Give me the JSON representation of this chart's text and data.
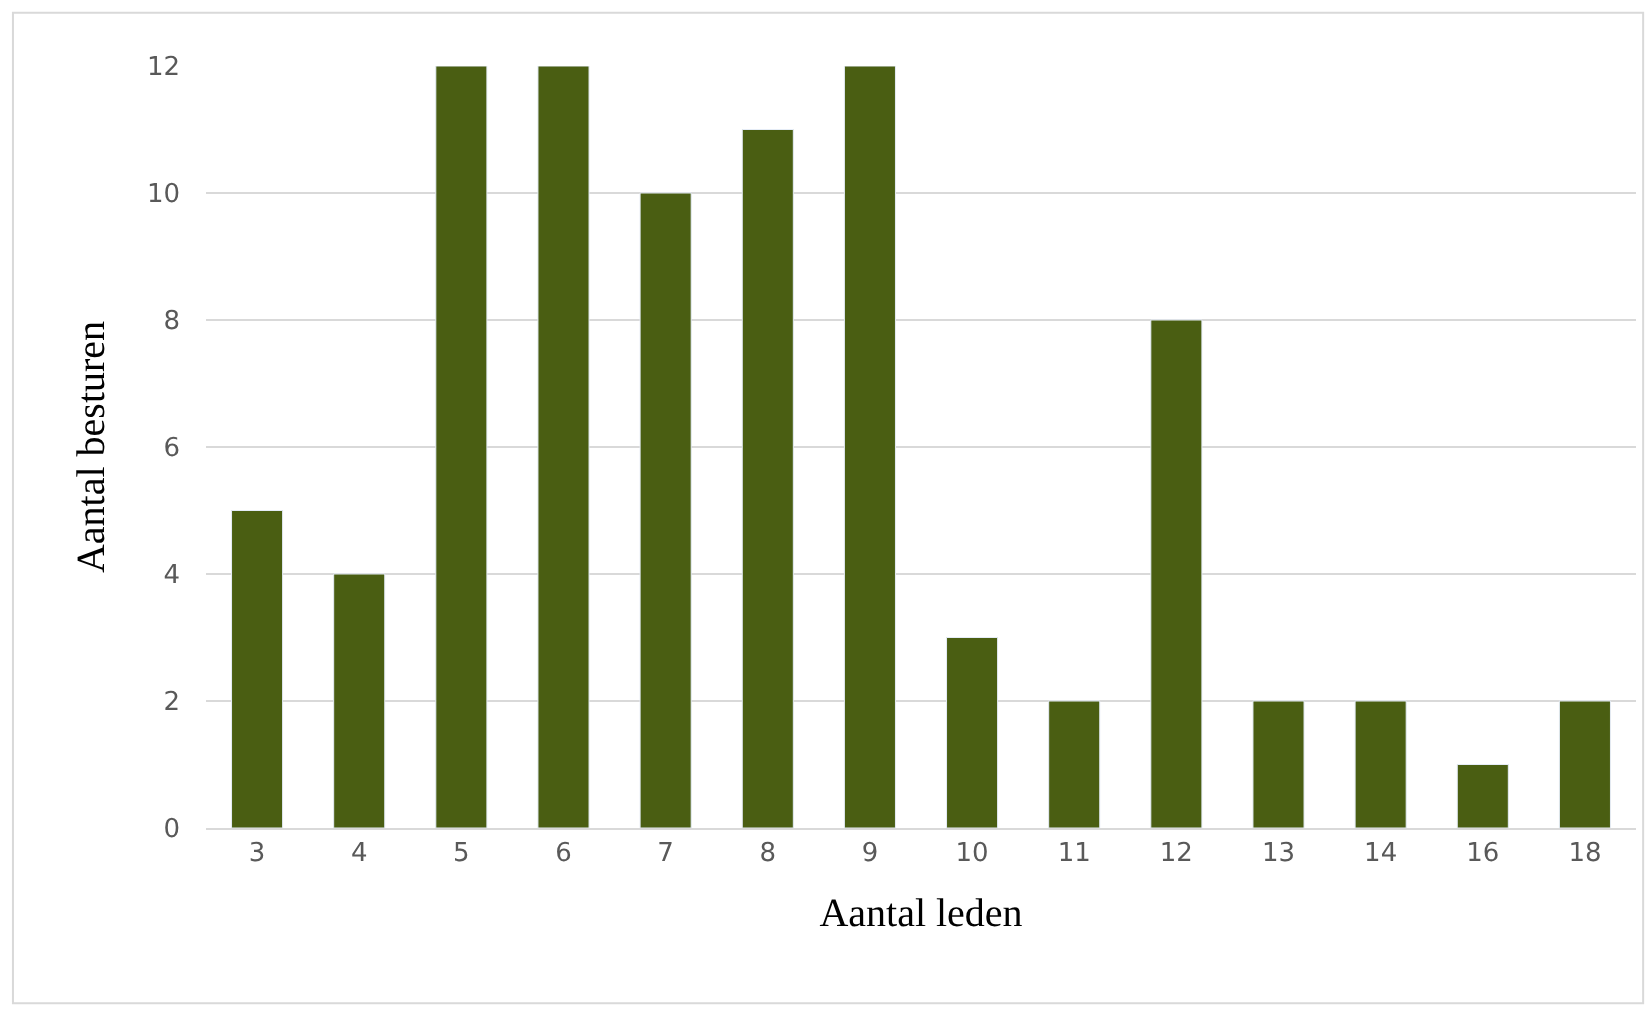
{
  "chart_data": {
    "type": "bar",
    "xlabel": "Aantal leden",
    "ylabel": "Aantal besturen",
    "categories": [
      "3",
      "4",
      "5",
      "6",
      "7",
      "8",
      "9",
      "10",
      "11",
      "12",
      "13",
      "14",
      "16",
      "18"
    ],
    "values": [
      5,
      4,
      12,
      12,
      10,
      11,
      12,
      3,
      2,
      8,
      2,
      2,
      1,
      2
    ],
    "color": "#4a5e12",
    "ylim": [
      0,
      12
    ],
    "yticks": [
      0,
      2,
      4,
      6,
      8,
      10,
      12
    ],
    "grid": "y"
  }
}
